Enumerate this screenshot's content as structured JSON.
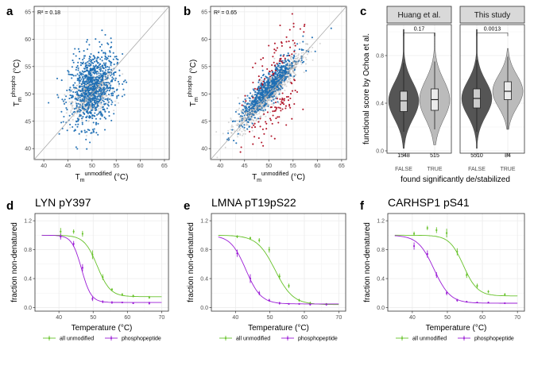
{
  "panel_labels": [
    "a",
    "b",
    "c",
    "d",
    "e",
    "f"
  ],
  "colors": {
    "grey_point": "#8c8c8c",
    "blue_point": "#1f6fb4",
    "red_point": "#b2182b",
    "green_line": "#67c22a",
    "purple_line": "#9b1dd6",
    "violet_false": "#555555",
    "violet_true": "#bbbbbb",
    "strip_bg": "#d9d9d9"
  },
  "chart_data": [
    {
      "id": "a",
      "type": "scatter",
      "annotation": "R² = 0.18",
      "r_squared": 0.18,
      "xlim": [
        38,
        66
      ],
      "ylim": [
        38,
        66
      ],
      "xticks": [
        40,
        45,
        50,
        55,
        60,
        65
      ],
      "yticks": [
        40,
        45,
        50,
        55,
        60,
        65
      ],
      "xlabel": "T_m^unmodified (°C)",
      "ylabel": "T_m^phospho (°C)",
      "diagonal": true,
      "highlight_color": "blue",
      "highlight_cloud": {
        "x_center": 50,
        "y_center": 51,
        "x_sd": 2.4,
        "y_sd": 3.4,
        "count": 950
      },
      "background_cloud": {
        "x_center": 50,
        "y_center": 50,
        "x_sd": 2.0,
        "y_sd": 1.8,
        "count": 600
      }
    },
    {
      "id": "b",
      "type": "scatter",
      "annotation": "R² = 0.65",
      "r_squared": 0.65,
      "xlim": [
        38,
        66
      ],
      "ylim": [
        38,
        66
      ],
      "xticks": [
        40,
        45,
        50,
        55,
        60,
        65
      ],
      "yticks": [
        40,
        45,
        50,
        55,
        60,
        65
      ],
      "xlabel": "T_m^unmodified (°C)",
      "ylabel": "T_m^phospho (°C)",
      "diagonal": true,
      "highlight_color": "blue",
      "highlight_cloud": {
        "x_center": 50,
        "y_center": 51,
        "x_sd": 3.0,
        "y_sd": 3.0,
        "count": 700
      },
      "background_cloud": {
        "x_center": 50,
        "y_center": 50.5,
        "x_sd": 3.2,
        "y_sd": 3.0,
        "count": 1100
      },
      "red_cloud": {
        "x_center": 51,
        "y_center": 50,
        "x_sd": 3.2,
        "y_sd": 4.5,
        "count": 150
      }
    },
    {
      "id": "c",
      "type": "violin",
      "facets": [
        "Huang et al.",
        "This study"
      ],
      "categories": [
        "FALSE",
        "TRUE"
      ],
      "ylabel": "functional score by Ochoa et al.",
      "xlabel": "found significantly de/stabilized",
      "ylim": [
        -0.02,
        1.06
      ],
      "yticks": [
        0.0,
        0.4,
        0.8
      ],
      "groups": [
        {
          "facet": "Huang et al.",
          "category": "FALSE",
          "n": "1548",
          "median": 0.42,
          "q1": 0.33,
          "q3": 0.5,
          "wlo": 0.16,
          "whi": 0.74,
          "vmin": 0.02,
          "vmax": 1.02
        },
        {
          "facet": "Huang et al.",
          "category": "TRUE",
          "n": "515",
          "median": 0.43,
          "q1": 0.34,
          "q3": 0.52,
          "wlo": 0.18,
          "whi": 0.75,
          "vmin": 0.05,
          "vmax": 0.99
        },
        {
          "facet": "This study",
          "category": "FALSE",
          "n": "5510",
          "median": 0.44,
          "q1": 0.36,
          "q3": 0.52,
          "wlo": 0.16,
          "whi": 0.76,
          "vmin": 0.02,
          "vmax": 1.02
        },
        {
          "facet": "This study",
          "category": "TRUE",
          "n": "84",
          "median": 0.5,
          "q1": 0.43,
          "q3": 0.58,
          "wlo": 0.18,
          "whi": 0.79,
          "vmin": 0.18,
          "vmax": 0.86
        }
      ],
      "pvalues": [
        {
          "facet": "Huang et al.",
          "label": "0.17"
        },
        {
          "facet": "This study",
          "label": "0.0013"
        }
      ]
    },
    {
      "id": "d",
      "type": "line",
      "title": "LYN pY397",
      "xlim": [
        33,
        72
      ],
      "ylim": [
        -0.05,
        1.3
      ],
      "xticks": [
        40,
        50,
        60,
        70
      ],
      "yticks": [
        0.0,
        0.4,
        0.8,
        1.2
      ],
      "xlabel": "Temperature (°C)",
      "ylabel": "fraction non-denatured",
      "series": [
        {
          "name": "all unmodified",
          "tm": 51.2,
          "slope": 1.9,
          "plateau": 0.15,
          "points": [
            [
              40.5,
              1.05
            ],
            [
              44.3,
              1.05
            ],
            [
              46.9,
              1.02
            ],
            [
              49.8,
              0.73
            ],
            [
              52.8,
              0.42
            ],
            [
              55.5,
              0.25
            ],
            [
              58.5,
              0.18
            ],
            [
              61.7,
              0.16
            ],
            [
              66.4,
              0.14
            ]
          ],
          "errors": [
            0.05,
            0.03,
            0.04,
            0.06,
            0.04,
            0.02,
            0.02,
            0.02,
            0.02
          ]
        },
        {
          "name": "phosphopeptide",
          "tm": 46.6,
          "slope": 1.4,
          "plateau": 0.07,
          "points": [
            [
              40.5,
              0.98
            ],
            [
              44.3,
              0.88
            ],
            [
              46.9,
              0.55
            ],
            [
              49.8,
              0.12
            ],
            [
              52.8,
              0.08
            ],
            [
              55.5,
              0.07
            ],
            [
              58.5,
              0.07
            ],
            [
              61.7,
              0.06
            ],
            [
              66.4,
              0.06
            ]
          ],
          "errors": [
            0.04,
            0.04,
            0.05,
            0.03,
            0.02,
            0.02,
            0.01,
            0.01,
            0.02
          ]
        }
      ]
    },
    {
      "id": "e",
      "type": "line",
      "title": "LMNA pT19pS22",
      "xlim": [
        33,
        72
      ],
      "ylim": [
        -0.05,
        1.3
      ],
      "xticks": [
        40,
        50,
        60,
        70
      ],
      "yticks": [
        0.0,
        0.4,
        0.8,
        1.2
      ],
      "xlabel": "Temperature (°C)",
      "ylabel": "fraction non-denatured",
      "series": [
        {
          "name": "all unmodified",
          "tm": 51.5,
          "slope": 2.6,
          "plateau": 0.04,
          "points": [
            [
              40.5,
              0.98
            ],
            [
              44.3,
              0.96
            ],
            [
              46.9,
              0.93
            ],
            [
              49.8,
              0.8
            ],
            [
              52.8,
              0.43
            ],
            [
              55.5,
              0.3
            ],
            [
              58.5,
              0.1
            ],
            [
              61.7,
              0.06
            ],
            [
              66.4,
              0.05
            ]
          ],
          "errors": [
            0.02,
            0.02,
            0.03,
            0.04,
            0.04,
            0.03,
            0.02,
            0.02,
            0.01
          ]
        },
        {
          "name": "phosphopeptide",
          "tm": 43.0,
          "slope": 2.2,
          "plateau": 0.05,
          "points": [
            [
              40.5,
              0.75
            ],
            [
              44.3,
              0.4
            ],
            [
              46.9,
              0.2
            ],
            [
              49.8,
              0.1
            ],
            [
              52.8,
              0.06
            ],
            [
              55.5,
              0.05
            ],
            [
              58.5,
              0.05
            ],
            [
              61.7,
              0.04
            ],
            [
              66.4,
              0.04
            ]
          ],
          "errors": [
            0.05,
            0.06,
            0.03,
            0.02,
            0.02,
            0.01,
            0.01,
            0.01,
            0.01
          ]
        }
      ]
    },
    {
      "id": "f",
      "type": "line",
      "title": "CARHSP1 pS41",
      "xlim": [
        33,
        72
      ],
      "ylim": [
        -0.05,
        1.3
      ],
      "xticks": [
        40,
        50,
        60,
        70
      ],
      "yticks": [
        0.0,
        0.4,
        0.8,
        1.2
      ],
      "xlabel": "Temperature (°C)",
      "ylabel": "fraction non-denatured",
      "series": [
        {
          "name": "all unmodified",
          "tm": 54.6,
          "slope": 2.0,
          "plateau": 0.16,
          "points": [
            [
              40.5,
              1.02
            ],
            [
              44.3,
              1.1
            ],
            [
              46.9,
              1.07
            ],
            [
              49.8,
              1.03
            ],
            [
              52.8,
              0.77
            ],
            [
              55.5,
              0.45
            ],
            [
              58.5,
              0.3
            ],
            [
              61.7,
              0.22
            ],
            [
              66.4,
              0.18
            ]
          ],
          "errors": [
            0.03,
            0.03,
            0.04,
            0.06,
            0.05,
            0.04,
            0.03,
            0.02,
            0.02
          ]
        },
        {
          "name": "phosphopeptide",
          "tm": 46.2,
          "slope": 2.3,
          "plateau": 0.06,
          "points": [
            [
              40.5,
              0.85
            ],
            [
              44.3,
              0.74
            ],
            [
              46.9,
              0.45
            ],
            [
              49.8,
              0.2
            ],
            [
              52.8,
              0.1
            ],
            [
              55.5,
              0.08
            ],
            [
              58.5,
              0.07
            ],
            [
              61.7,
              0.07
            ],
            [
              66.4,
              0.06
            ]
          ],
          "errors": [
            0.05,
            0.05,
            0.04,
            0.03,
            0.02,
            0.01,
            0.01,
            0.01,
            0.01
          ]
        }
      ]
    }
  ]
}
